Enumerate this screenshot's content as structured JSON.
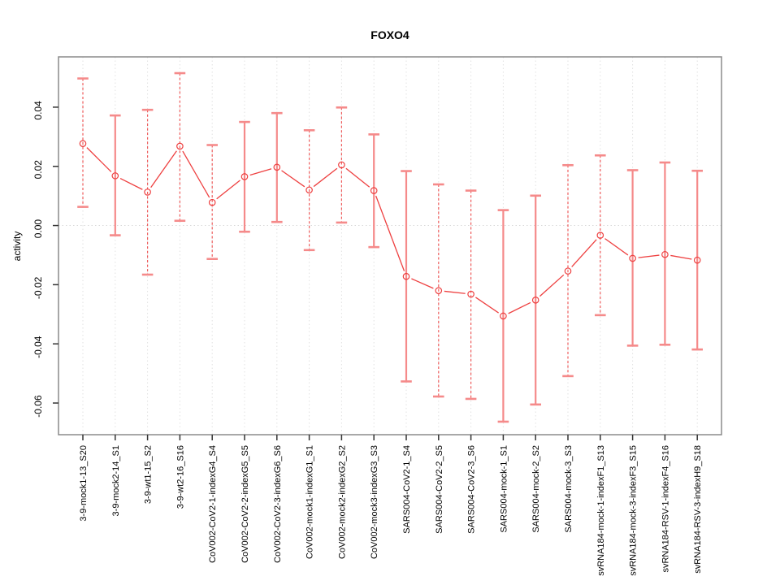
{
  "colors": {
    "point_line": "#ee4040",
    "error_bar_solid": "#f58a8a",
    "error_bar_dashed": "#ef5c5c",
    "error_bar_cap": "#f58a8a",
    "gridline": "#e2e2e2",
    "zero_line": "#d9d9d9",
    "box_border": "#8a8a8a",
    "axis_tick": "#333333",
    "text": "#000000"
  },
  "chart_data": {
    "type": "line",
    "title": "FOXO4",
    "xlabel": "",
    "ylabel": "activity",
    "ylim": [
      -0.0707,
      0.057
    ],
    "yticks": [
      0.04,
      0.02,
      0.0,
      -0.02,
      -0.04,
      -0.06
    ],
    "grid": "dotted vertical gridline at each category; dotted horizontal line at y=0",
    "legend_position": "none",
    "marker": "open-circle",
    "categories": [
      "3-9-mock1-13_S20",
      "3-9-mock2-14_S1",
      "3-9-wt1-15_S2",
      "3-9-wt2-16_S16",
      "CoV002-CoV2-1-indexG4_S4",
      "CoV002-CoV2-2-indexG5_S5",
      "CoV002-CoV2-3-indexG6_S6",
      "CoV002-mock1-indexG1_S1",
      "CoV002-mock2-indexG2_S2",
      "CoV002-mock3-indexG3_S3",
      "SARS004-CoV2-1_S4",
      "SARS004-CoV2-2_S5",
      "SARS004-CoV2-3_S6",
      "SARS004-mock-1_S1",
      "SARS004-mock-2_S2",
      "SARS004-mock-3_S3",
      "svRNA184-mock-1-indexF1_S13",
      "svRNA184-mock-3-indexF3_S15",
      "svRNA184-RSV-1-indexF4_S16",
      "svRNA184-RSV-3-indexH9_S18"
    ],
    "series": [
      {
        "name": "activity",
        "values": [
          0.0277,
          0.0168,
          0.0113,
          0.0268,
          0.0078,
          0.0165,
          0.0197,
          0.012,
          0.0205,
          0.0118,
          -0.0172,
          -0.022,
          -0.0232,
          -0.0306,
          -0.0252,
          -0.0154,
          -0.0033,
          -0.0111,
          -0.0098,
          -0.0117
        ]
      }
    ],
    "error_bars": {
      "upper": [
        0.0497,
        0.0372,
        0.0391,
        0.0515,
        0.0272,
        0.035,
        0.038,
        0.0322,
        0.0399,
        0.0308,
        0.0184,
        0.0139,
        0.0118,
        0.0052,
        0.0101,
        0.0204,
        0.0237,
        0.0187,
        0.0213,
        0.0185
      ],
      "lower": [
        0.0063,
        -0.0033,
        -0.0166,
        0.0016,
        -0.0113,
        -0.0021,
        0.0012,
        -0.0083,
        0.001,
        -0.0073,
        -0.0527,
        -0.0578,
        -0.0586,
        -0.0663,
        -0.0605,
        -0.0509,
        -0.0303,
        -0.0406,
        -0.0403,
        -0.0419
      ],
      "bar_styles": [
        "dashed",
        "solid",
        "dashed",
        "dashed",
        "dashed",
        "solid",
        "solid",
        "dashed",
        "dashed",
        "solid",
        "solid",
        "dashed",
        "dashed",
        "solid",
        "solid",
        "dashed",
        "dashed",
        "solid",
        "solid",
        "solid"
      ]
    }
  }
}
